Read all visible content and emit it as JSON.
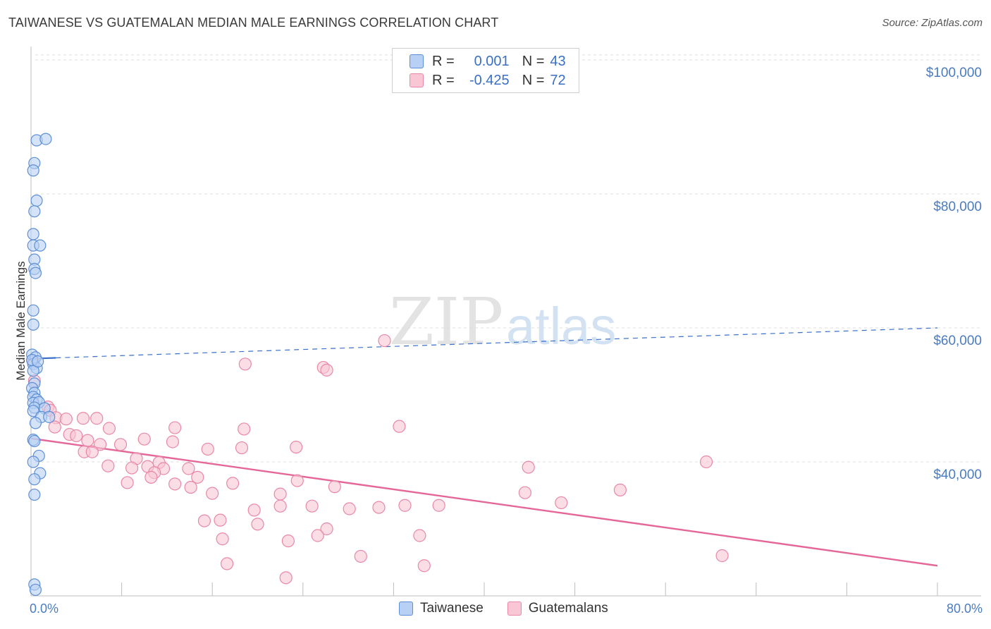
{
  "title": "TAIWANESE VS GUATEMALAN MEDIAN MALE EARNINGS CORRELATION CHART",
  "source": "Source: ZipAtlas.com",
  "watermark": {
    "zip": "ZIP",
    "atlas": "atlas"
  },
  "legend": {
    "r_label": "R =",
    "n_label": "N =",
    "rows": [
      {
        "name": "Taiwanese",
        "r": "0.001",
        "n": "43"
      },
      {
        "name": "Guatemalans",
        "r": "-0.425",
        "n": "72"
      }
    ]
  },
  "colors": {
    "taiwanese_fill": "#b8d0f3",
    "taiwanese_stroke": "#5d8fd6",
    "taiwanese_line": "#3a70c8",
    "guatemalan_fill": "#f9c6d6",
    "guatemalan_stroke": "#e888a8",
    "guatemalan_line": "#e5679a",
    "tick_text": "#4a7cc0",
    "grid": "#dedede"
  },
  "chart_data": {
    "type": "scatter",
    "title": "TAIWANESE VS GUATEMALAN MEDIAN MALE EARNINGS CORRELATION CHART",
    "xlabel": "",
    "ylabel": "Median Male Earnings",
    "xlim": [
      0,
      80
    ],
    "ylim": [
      20000,
      102000
    ],
    "x_tick_labels": [
      "0.0%",
      "80.0%"
    ],
    "y_ticks": [
      40000,
      60000,
      80000,
      100000
    ],
    "y_tick_labels": [
      "$40,000",
      "$60,000",
      "$80,000",
      "$100,000"
    ],
    "grid": true,
    "legend_position": "top-center",
    "series": [
      {
        "name": "Taiwanese",
        "points": [
          [
            0.5,
            88000
          ],
          [
            1.3,
            88200
          ],
          [
            0.3,
            84600
          ],
          [
            0.2,
            83500
          ],
          [
            0.5,
            79000
          ],
          [
            0.3,
            77400
          ],
          [
            0.2,
            74000
          ],
          [
            0.2,
            72300
          ],
          [
            0.8,
            72300
          ],
          [
            0.3,
            70200
          ],
          [
            0.3,
            68800
          ],
          [
            0.4,
            68200
          ],
          [
            0.2,
            62600
          ],
          [
            0.2,
            60500
          ],
          [
            0.1,
            56000
          ],
          [
            0.4,
            55600
          ],
          [
            0.2,
            54600
          ],
          [
            0.5,
            54000
          ],
          [
            0.2,
            53600
          ],
          [
            0.3,
            51700
          ],
          [
            0.1,
            51000
          ],
          [
            0.3,
            50300
          ],
          [
            0.2,
            49700
          ],
          [
            0.5,
            49300
          ],
          [
            0.2,
            48800
          ],
          [
            0.7,
            48900
          ],
          [
            0.3,
            48100
          ],
          [
            1.2,
            48000
          ],
          [
            0.2,
            47600
          ],
          [
            0.9,
            46700
          ],
          [
            1.6,
            46700
          ],
          [
            0.4,
            45800
          ],
          [
            0.2,
            43300
          ],
          [
            0.3,
            43100
          ],
          [
            0.7,
            40900
          ],
          [
            0.2,
            40000
          ],
          [
            0.8,
            38300
          ],
          [
            0.3,
            37400
          ],
          [
            0.3,
            35100
          ],
          [
            0.3,
            21700
          ],
          [
            0.4,
            20900
          ],
          [
            0.1,
            55200
          ],
          [
            0.6,
            55000
          ]
        ],
        "trend": {
          "x": [
            0,
            80
          ],
          "y": [
            55400,
            60000
          ],
          "solid_to_x": 2.2
        }
      },
      {
        "name": "Guatemalans",
        "points": [
          [
            0.2,
            55000
          ],
          [
            0.3,
            52100
          ],
          [
            1.5,
            48200
          ],
          [
            1.7,
            47700
          ],
          [
            2.2,
            46600
          ],
          [
            3.1,
            46400
          ],
          [
            4.6,
            46500
          ],
          [
            5.8,
            46500
          ],
          [
            2.1,
            45200
          ],
          [
            6.9,
            45000
          ],
          [
            12.7,
            45100
          ],
          [
            18.8,
            44900
          ],
          [
            3.4,
            44100
          ],
          [
            4.0,
            43900
          ],
          [
            5.0,
            43200
          ],
          [
            10.0,
            43400
          ],
          [
            12.5,
            43000
          ],
          [
            6.1,
            42600
          ],
          [
            7.9,
            42600
          ],
          [
            18.6,
            42100
          ],
          [
            23.4,
            42200
          ],
          [
            15.6,
            41900
          ],
          [
            4.7,
            41500
          ],
          [
            5.4,
            41500
          ],
          [
            9.3,
            40500
          ],
          [
            11.3,
            39900
          ],
          [
            6.8,
            39400
          ],
          [
            8.9,
            39100
          ],
          [
            10.3,
            39300
          ],
          [
            11.7,
            39000
          ],
          [
            13.9,
            39000
          ],
          [
            10.9,
            38400
          ],
          [
            10.6,
            37700
          ],
          [
            14.7,
            37700
          ],
          [
            8.5,
            36900
          ],
          [
            12.7,
            36700
          ],
          [
            17.8,
            36800
          ],
          [
            23.5,
            37200
          ],
          [
            26.8,
            36300
          ],
          [
            14.1,
            36200
          ],
          [
            16.0,
            35300
          ],
          [
            22.0,
            35200
          ],
          [
            19.7,
            32800
          ],
          [
            22.0,
            33400
          ],
          [
            24.8,
            33400
          ],
          [
            28.1,
            33000
          ],
          [
            30.7,
            33200
          ],
          [
            33.0,
            33500
          ],
          [
            36.0,
            33500
          ],
          [
            15.3,
            31200
          ],
          [
            16.7,
            31300
          ],
          [
            20.0,
            30700
          ],
          [
            26.1,
            30000
          ],
          [
            25.3,
            29000
          ],
          [
            34.3,
            29000
          ],
          [
            16.9,
            28500
          ],
          [
            22.7,
            28200
          ],
          [
            17.3,
            24800
          ],
          [
            29.1,
            25900
          ],
          [
            34.7,
            24500
          ],
          [
            22.5,
            22700
          ],
          [
            18.9,
            54600
          ],
          [
            25.8,
            54100
          ],
          [
            26.1,
            53700
          ],
          [
            31.2,
            58100
          ],
          [
            32.5,
            45300
          ],
          [
            43.9,
            39200
          ],
          [
            43.6,
            35400
          ],
          [
            46.8,
            33900
          ],
          [
            52.0,
            35800
          ],
          [
            59.6,
            40000
          ],
          [
            61.0,
            26000
          ]
        ],
        "trend": {
          "x": [
            0,
            80
          ],
          "y": [
            43500,
            24500
          ]
        }
      }
    ]
  }
}
